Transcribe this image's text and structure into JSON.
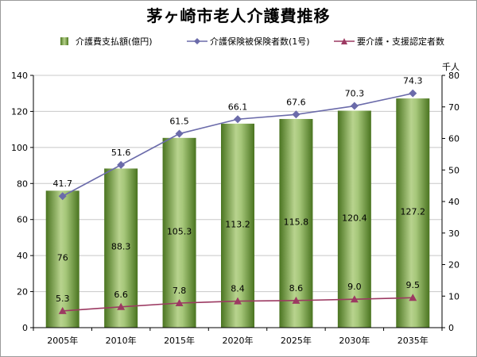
{
  "title": "茅ヶ崎市老人介護費推移",
  "legend": {
    "bar": "介護費支払額(億円)",
    "line1": "介護保険被保険者数(1号)",
    "line2": "要介護・支援認定者数"
  },
  "right_axis_unit": "千人",
  "chart_data": {
    "type": "bar",
    "title": "茅ヶ崎市老人介護費推移",
    "categories": [
      "2005年",
      "2010年",
      "2015年",
      "2020年",
      "2025年",
      "2030年",
      "2035年"
    ],
    "series": [
      {
        "name": "介護費支払額(億円)",
        "type": "bar",
        "axis": "left",
        "values": [
          76,
          88.3,
          105.3,
          113.2,
          115.8,
          120.4,
          127.2
        ],
        "labels": [
          "76",
          "88.3",
          "105.3",
          "113.2",
          "115.8",
          "120.4",
          "127.2"
        ],
        "color": "#6f9a3a"
      },
      {
        "name": "介護保険被保険者数(1号)",
        "type": "line",
        "axis": "right",
        "values": [
          41.7,
          51.6,
          61.5,
          66.1,
          67.6,
          70.3,
          74.3
        ],
        "labels": [
          "41.7",
          "51.6",
          "61.5",
          "66.1",
          "67.6",
          "70.3",
          "74.3"
        ],
        "color": "#6b6baa",
        "marker": "diamond"
      },
      {
        "name": "要介護・支援認定者数",
        "type": "line",
        "axis": "right",
        "values": [
          5.3,
          6.6,
          7.8,
          8.4,
          8.6,
          9.0,
          9.5
        ],
        "labels": [
          "5.3",
          "6.6",
          "7.8",
          "8.4",
          "8.6",
          "9.0",
          "9.5"
        ],
        "color": "#9c3a62",
        "marker": "triangle"
      }
    ],
    "y_left": {
      "range": [
        0,
        140
      ],
      "ticks": [
        "0",
        "20",
        "40",
        "60",
        "80",
        "100",
        "120",
        "140"
      ]
    },
    "y_right": {
      "range": [
        0,
        80
      ],
      "ticks": [
        "0",
        "10",
        "20",
        "30",
        "40",
        "50",
        "60",
        "70",
        "80"
      ],
      "unit": "千人"
    },
    "grid": true,
    "legend_position": "top"
  }
}
